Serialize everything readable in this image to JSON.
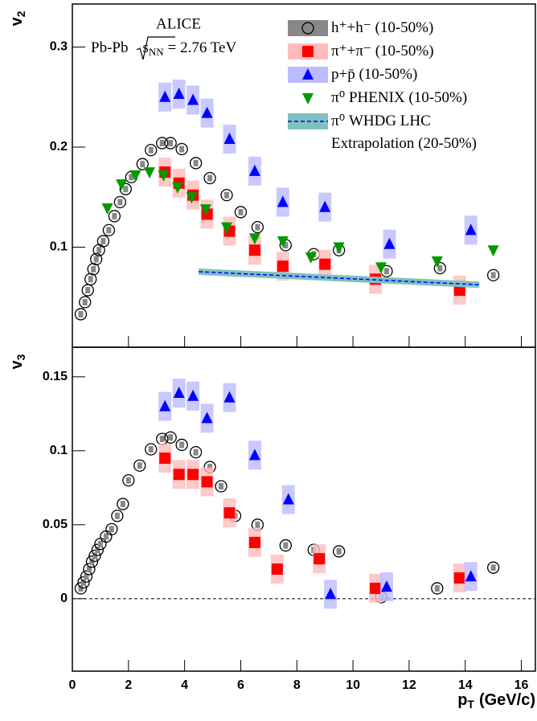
{
  "chart_data": [
    {
      "type": "scatter",
      "y_label": "v",
      "y_label_sub": "2",
      "annotations": {
        "experiment": "ALICE",
        "system": "Pb-Pb",
        "energy_var": "s",
        "energy_sub": "NN",
        "energy": "= 2.76 TeV"
      },
      "xlim": [
        0,
        16.5
      ],
      "ylim": [
        0,
        0.343
      ],
      "xticks": [
        0,
        2,
        4,
        6,
        8,
        10,
        12,
        14,
        16
      ],
      "xtick_labels": false,
      "yticks": [
        0.1,
        0.2,
        0.3
      ],
      "series": [
        {
          "name": "h⁺+h⁻ (10-50%)",
          "marker": "open-circle",
          "color": "#000000",
          "box_color": "#888888",
          "x": [
            0.3,
            0.45,
            0.55,
            0.65,
            0.75,
            0.85,
            0.95,
            1.1,
            1.3,
            1.5,
            1.7,
            1.9,
            2.1,
            2.5,
            2.8,
            3.2,
            3.5,
            3.9,
            4.4,
            4.9,
            5.5,
            6.0,
            6.6,
            7.6,
            8.6,
            9.5,
            11.2,
            13.1,
            15.0
          ],
          "values": [
            0.033,
            0.045,
            0.057,
            0.068,
            0.078,
            0.088,
            0.097,
            0.106,
            0.117,
            0.131,
            0.145,
            0.158,
            0.17,
            0.183,
            0.197,
            0.204,
            0.204,
            0.198,
            0.184,
            0.169,
            0.152,
            0.135,
            0.12,
            0.102,
            0.093,
            0.097,
            0.076,
            0.079,
            0.072
          ]
        },
        {
          "name": "π⁺+π⁻ (10-50%)",
          "marker": "square",
          "color": "#ff0000",
          "box_color": "#ffbbbb",
          "x": [
            3.3,
            3.8,
            4.3,
            4.8,
            5.6,
            6.5,
            7.5,
            9.0,
            10.8,
            13.8
          ],
          "values": [
            0.175,
            0.164,
            0.152,
            0.133,
            0.116,
            0.097,
            0.081,
            0.083,
            0.068,
            0.057
          ]
        },
        {
          "name": "p+p̄ (10-50%)",
          "marker": "triangle-up",
          "color": "#0000ff",
          "box_color": "#bbbbff",
          "x": [
            3.3,
            3.8,
            4.3,
            4.8,
            5.6,
            6.5,
            7.5,
            9.0,
            11.3,
            14.2
          ],
          "values": [
            0.25,
            0.253,
            0.247,
            0.234,
            0.208,
            0.176,
            0.145,
            0.14,
            0.103,
            0.117
          ]
        },
        {
          "name": "π⁰ PHENIX (10-50%)",
          "marker": "triangle-down",
          "color": "#009900",
          "x": [
            1.25,
            1.75,
            2.25,
            2.75,
            3.25,
            3.75,
            4.25,
            4.75,
            5.5,
            6.5,
            7.5,
            8.5,
            9.5,
            11.0,
            13.0,
            15.0
          ],
          "values": [
            0.139,
            0.163,
            0.172,
            0.175,
            0.172,
            0.16,
            0.15,
            0.138,
            0.12,
            0.109,
            0.106,
            0.09,
            0.1,
            0.08,
            0.086,
            0.097
          ]
        },
        {
          "name": "π⁰ WHDG LHC Extrapolation (20-50%)",
          "type": "line",
          "color": "#0000ff",
          "box_color": "#80c0c0",
          "x": [
            4.5,
            14.5
          ],
          "values": [
            0.0755,
            0.0625
          ]
        }
      ]
    },
    {
      "type": "scatter",
      "y_label": "v",
      "y_label_sub": "3",
      "x_label": "p",
      "x_label_sub": "T",
      "x_label_unit": "(GeV/c)",
      "xlim": [
        0,
        16.5
      ],
      "ylim": [
        -0.049,
        0.17
      ],
      "xticks": [
        0,
        2,
        4,
        6,
        8,
        10,
        12,
        14,
        16
      ],
      "xtick_labels": true,
      "yticks": [
        0,
        0.05,
        0.1,
        0.15
      ],
      "zero_line": true,
      "series": [
        {
          "marker": "open-circle",
          "color": "#000000",
          "box_color": "#888888",
          "x": [
            0.3,
            0.4,
            0.5,
            0.6,
            0.7,
            0.8,
            0.9,
            1.0,
            1.2,
            1.4,
            1.6,
            1.8,
            2.0,
            2.4,
            2.8,
            3.2,
            3.5,
            3.9,
            4.4,
            4.9,
            5.3,
            5.8,
            6.6,
            7.6,
            8.6,
            9.5,
            11.0,
            13.0,
            15.0
          ],
          "values": [
            0.007,
            0.011,
            0.015,
            0.02,
            0.025,
            0.029,
            0.033,
            0.037,
            0.042,
            0.047,
            0.056,
            0.064,
            0.08,
            0.09,
            0.101,
            0.108,
            0.109,
            0.104,
            0.099,
            0.089,
            0.076,
            0.056,
            0.05,
            0.036,
            0.033,
            0.032,
            0.001,
            0.007,
            0.021
          ]
        },
        {
          "marker": "square",
          "color": "#ff0000",
          "box_color": "#ffbbbb",
          "x": [
            3.3,
            3.8,
            4.3,
            4.8,
            5.6,
            6.5,
            7.3,
            8.8,
            10.8,
            13.8
          ],
          "values": [
            0.095,
            0.084,
            0.084,
            0.079,
            0.058,
            0.038,
            0.02,
            0.027,
            0.007,
            0.014
          ]
        },
        {
          "marker": "triangle-up",
          "color": "#0000ff",
          "box_color": "#bbbbff",
          "x": [
            3.3,
            3.8,
            4.3,
            4.8,
            5.6,
            6.5,
            7.7,
            9.2,
            11.2,
            14.2
          ],
          "values": [
            0.13,
            0.139,
            0.137,
            0.122,
            0.136,
            0.097,
            0.067,
            0.003,
            0.008,
            0.015
          ]
        }
      ]
    }
  ]
}
